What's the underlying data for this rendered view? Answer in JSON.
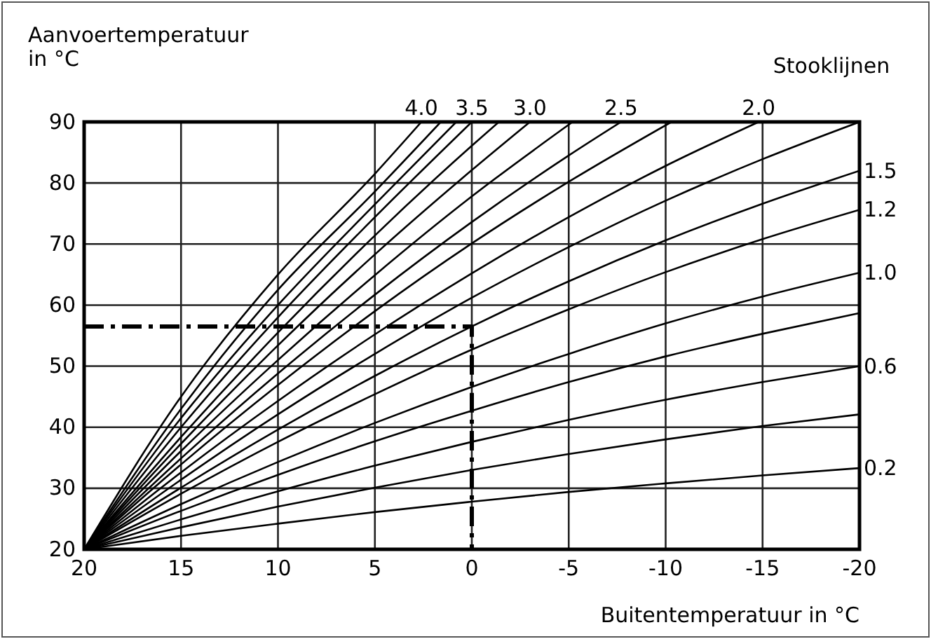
{
  "chart_data": {
    "type": "line",
    "xlabel": "Buitentemperatuur in °C",
    "ylabel": "Aanvoertemperatuur\nin °C",
    "legend_title": "Stooklijnen",
    "xlim": [
      20,
      -20
    ],
    "xticks": [
      20,
      15,
      10,
      5,
      0,
      -5,
      -10,
      -15,
      -20
    ],
    "ylim": [
      20,
      90
    ],
    "yticks": [
      20,
      30,
      40,
      50,
      60,
      70,
      80,
      90
    ],
    "grid": true,
    "marker": "none",
    "series": [
      {
        "color": "#000000",
        "x": [
          20,
          15,
          10,
          5,
          0,
          -5,
          -10,
          -15,
          -20
        ],
        "values": [
          20,
          22.2,
          24.2,
          26.1,
          27.8,
          29.4,
          30.8,
          32.1,
          33.3
        ],
        "name": "0.2"
      },
      {
        "color": "#000000",
        "x": [
          20,
          15,
          10,
          5,
          0,
          -5,
          -10,
          -15,
          -20
        ],
        "values": [
          20,
          23.6,
          27.0,
          30.1,
          33.0,
          35.6,
          38.0,
          40.2,
          42.1
        ]
      },
      {
        "color": "#000000",
        "x": [
          20,
          15,
          10,
          5,
          0,
          -5,
          -10,
          -15,
          -20
        ],
        "values": [
          20,
          24.9,
          29.5,
          33.7,
          37.6,
          41.2,
          44.5,
          47.4,
          50.0
        ],
        "name": "0.6"
      },
      {
        "color": "#000000",
        "x": [
          20,
          15,
          10,
          5,
          0,
          -5,
          -10,
          -15,
          -20
        ],
        "values": [
          20,
          26.3,
          32.2,
          37.7,
          42.7,
          47.4,
          51.6,
          55.3,
          58.7
        ]
      },
      {
        "color": "#000000",
        "x": [
          20,
          15,
          10,
          5,
          0,
          -5,
          -10,
          -15,
          -20
        ],
        "values": [
          20,
          27.4,
          34.3,
          40.7,
          46.6,
          52.0,
          57.0,
          61.4,
          65.3
        ],
        "name": "1.0"
      },
      {
        "color": "#000000",
        "x": [
          20,
          15,
          10,
          5,
          0,
          -5,
          -10,
          -15,
          -20
        ],
        "values": [
          20,
          29.1,
          37.6,
          45.4,
          52.7,
          59.3,
          65.4,
          70.8,
          75.6
        ],
        "name": "1.2"
      },
      {
        "color": "#000000",
        "x": [
          20,
          15,
          10,
          5,
          0,
          -5,
          -10,
          -15,
          -20
        ],
        "values": [
          20,
          30.1,
          39.6,
          48.4,
          56.5,
          63.9,
          70.6,
          76.6,
          82.0
        ],
        "name": "1.5"
      },
      {
        "color": "#000000",
        "x": [
          20,
          15,
          10,
          5,
          0,
          -5,
          -10,
          -15,
          -20
        ],
        "values": [
          20,
          31.4,
          42.1,
          52.0,
          61.2,
          69.5,
          77.1,
          83.9,
          90.0
        ]
      },
      {
        "color": "#000000",
        "x": [
          20,
          15,
          10,
          5,
          0,
          -5,
          -10,
          -14.8
        ],
        "values": [
          20,
          32.6,
          44.3,
          55.2,
          65.2,
          74.4,
          82.8,
          90
        ],
        "name": "2.0"
      },
      {
        "color": "#000000",
        "x": [
          20,
          15,
          10,
          5,
          0,
          -5,
          -10.3
        ],
        "values": [
          20,
          33.9,
          46.9,
          59.0,
          70.1,
          80.2,
          90
        ]
      },
      {
        "color": "#000000",
        "x": [
          20,
          15,
          10,
          5,
          0,
          -5,
          -7.7
        ],
        "values": [
          20,
          34.9,
          48.8,
          61.7,
          73.6,
          84.5,
          90
        ],
        "name": "2.5"
      },
      {
        "color": "#000000",
        "x": [
          20,
          15,
          10,
          5,
          0,
          -5.2
        ],
        "values": [
          20,
          36.1,
          51.0,
          64.9,
          77.8,
          90
        ]
      },
      {
        "color": "#000000",
        "x": [
          20,
          15,
          10,
          5,
          0,
          -3
        ],
        "values": [
          20,
          37.3,
          53.4,
          68.3,
          82.1,
          90
        ],
        "name": "3.0"
      },
      {
        "color": "#000000",
        "x": [
          20,
          15,
          10,
          5,
          0,
          -1.4
        ],
        "values": [
          20,
          38.4,
          55.5,
          71.4,
          86.1,
          90
        ]
      },
      {
        "color": "#000000",
        "x": [
          20,
          15,
          10,
          5,
          0
        ],
        "values": [
          20,
          40.0,
          58.0,
          74.4,
          90
        ],
        "name": "3.5"
      },
      {
        "color": "#000000",
        "x": [
          20,
          15,
          10,
          5,
          0.8
        ],
        "values": [
          20,
          41.5,
          60.0,
          76.5,
          90
        ]
      },
      {
        "color": "#000000",
        "x": [
          20,
          15,
          10,
          5,
          1.6
        ],
        "values": [
          20,
          43.0,
          62.5,
          78.6,
          90
        ]
      },
      {
        "color": "#000000",
        "x": [
          20,
          15,
          10,
          5,
          2.6
        ],
        "values": [
          20,
          45.0,
          65.0,
          81.5,
          90
        ],
        "name": "4.0"
      },
      {
        "color": "#000000",
        "x": [
          20,
          0,
          0
        ],
        "values": [
          56.5,
          56.5,
          20
        ],
        "line_style": "dashed"
      }
    ]
  }
}
